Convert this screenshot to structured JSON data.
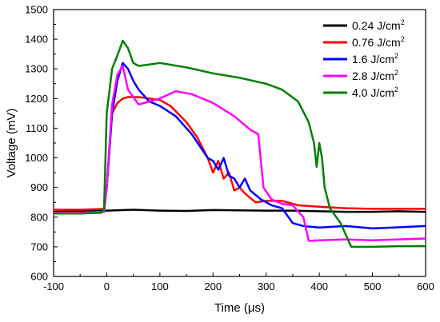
{
  "chart_data": {
    "type": "line",
    "xlabel": "Time (μs)",
    "ylabel": "Voltage (mV)",
    "xlim": [
      -100,
      600
    ],
    "ylim": [
      600,
      1500
    ],
    "xticks": [
      "-100",
      "0",
      "100",
      "200",
      "300",
      "400",
      "500",
      "600"
    ],
    "yticks": [
      "600",
      "700",
      "800",
      "900",
      "1000",
      "1100",
      "1200",
      "1300",
      "1400",
      "1500"
    ],
    "grid": false,
    "legend_position": "top-right",
    "series": [
      {
        "name": "0.24 J/cm",
        "name_superscript": "2",
        "color": "#000000",
        "x": [
          -100,
          -50,
          0,
          50,
          100,
          150,
          200,
          250,
          300,
          350,
          400,
          450,
          500,
          550,
          600
        ],
        "y": [
          818,
          820,
          822,
          825,
          822,
          821,
          824,
          823,
          822,
          822,
          820,
          818,
          818,
          820,
          818
        ]
      },
      {
        "name": "0.76 J/cm",
        "name_superscript": "2",
        "color": "#ff0000",
        "x": [
          -100,
          -50,
          -5,
          0,
          10,
          20,
          30,
          40,
          60,
          80,
          100,
          120,
          150,
          170,
          190,
          200,
          210,
          220,
          230,
          240,
          250,
          260,
          280,
          300,
          330,
          360,
          400,
          450,
          500,
          600
        ],
        "y": [
          825,
          825,
          828,
          900,
          1150,
          1185,
          1200,
          1205,
          1205,
          1200,
          1195,
          1175,
          1120,
          1070,
          1000,
          950,
          990,
          930,
          950,
          890,
          900,
          880,
          850,
          855,
          855,
          840,
          835,
          830,
          828,
          828
        ]
      },
      {
        "name": "1.6 J/cm",
        "name_superscript": "2",
        "color": "#0000ff",
        "x": [
          -100,
          -50,
          -5,
          0,
          10,
          20,
          30,
          40,
          50,
          60,
          80,
          100,
          130,
          160,
          190,
          200,
          210,
          220,
          230,
          240,
          250,
          260,
          270,
          290,
          310,
          330,
          350,
          370,
          400,
          450,
          500,
          600
        ],
        "y": [
          815,
          815,
          818,
          900,
          1150,
          1260,
          1320,
          1300,
          1260,
          1230,
          1190,
          1175,
          1140,
          1080,
          1000,
          990,
          960,
          1000,
          940,
          930,
          900,
          930,
          890,
          860,
          840,
          830,
          780,
          770,
          765,
          770,
          762,
          770
        ]
      },
      {
        "name": "2.8 J/cm",
        "name_superscript": "2",
        "color": "#ff00ff",
        "x": [
          -100,
          -50,
          -5,
          0,
          10,
          20,
          30,
          40,
          60,
          80,
          100,
          130,
          160,
          200,
          240,
          270,
          285,
          295,
          310,
          330,
          350,
          370,
          380,
          400,
          450,
          500,
          600
        ],
        "y": [
          815,
          815,
          818,
          900,
          1180,
          1280,
          1310,
          1230,
          1180,
          1190,
          1200,
          1225,
          1215,
          1185,
          1140,
          1095,
          1080,
          900,
          860,
          845,
          840,
          800,
          720,
          722,
          725,
          722,
          728
        ]
      },
      {
        "name": "4.0 J/cm",
        "name_superscript": "2",
        "color": "#008000",
        "x": [
          -100,
          -50,
          -10,
          -5,
          0,
          10,
          20,
          30,
          40,
          50,
          60,
          80,
          100,
          150,
          200,
          250,
          300,
          330,
          360,
          380,
          390,
          395,
          400,
          405,
          410,
          420,
          440,
          460,
          500,
          550,
          600
        ],
        "y": [
          812,
          812,
          815,
          830,
          1150,
          1300,
          1345,
          1395,
          1370,
          1320,
          1310,
          1315,
          1320,
          1305,
          1285,
          1270,
          1250,
          1230,
          1190,
          1120,
          1050,
          970,
          1050,
          1000,
          900,
          830,
          780,
          700,
          700,
          702,
          702
        ]
      }
    ]
  }
}
